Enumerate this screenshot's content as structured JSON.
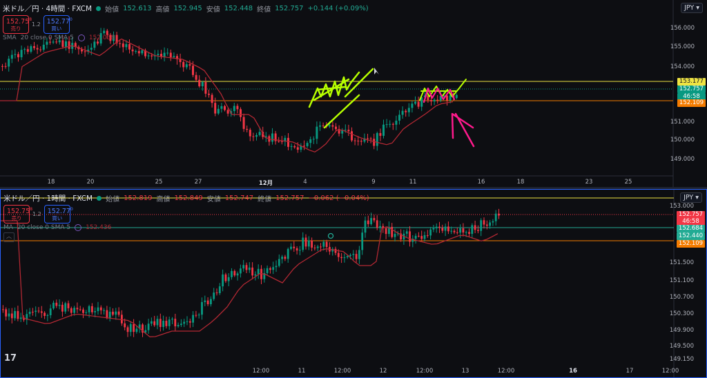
{
  "top": {
    "symbol": "米ドル／円 · 4時間 · FXCM",
    "ohlc": [
      {
        "label": "始値",
        "value": "152.613"
      },
      {
        "label": "高値",
        "value": "152.945"
      },
      {
        "label": "安値",
        "value": "152.448"
      },
      {
        "label": "終値",
        "value": "152.757"
      }
    ],
    "change": "+0.144 (+0.09%)",
    "sell": {
      "price": "152.75",
      "sup": "8",
      "label": "売り"
    },
    "spread": "1.2",
    "buy": {
      "price": "152.77",
      "sup": "0",
      "label": "買い"
    },
    "indicator": {
      "name": "SMA",
      "params": "20 close 0 SMA 5",
      "value": "152.038"
    },
    "currency": "JPY",
    "y_labels": [
      "156.000",
      "155.000",
      "154.000",
      "151.000",
      "150.000",
      "149.000"
    ],
    "x_labels": [
      {
        "t": "18",
        "bold": false
      },
      {
        "t": "20",
        "bold": false
      },
      {
        "t": "25",
        "bold": false
      },
      {
        "t": "27",
        "bold": false
      },
      {
        "t": "12月",
        "bold": true
      },
      {
        "t": "4",
        "bold": false
      },
      {
        "t": "9",
        "bold": false
      },
      {
        "t": "11",
        "bold": false
      },
      {
        "t": "16",
        "bold": false
      },
      {
        "t": "18",
        "bold": false
      },
      {
        "t": "23",
        "bold": false
      },
      {
        "t": "25",
        "bold": false
      }
    ],
    "price_tags": [
      {
        "text": "153.177",
        "bg": "#f0e442",
        "fg": "#131722"
      },
      {
        "text": "152.757",
        "bg": "#089981",
        "fg": "#ffffff"
      },
      {
        "text": "46:58",
        "bg": "#089981",
        "fg": "#ffffff"
      },
      {
        "text": "152.109",
        "bg": "#f57c00",
        "fg": "#ffffff"
      }
    ]
  },
  "bottom": {
    "symbol": "米ドル／円 · 1時間 · FXCM",
    "ohlc": [
      {
        "label": "始値",
        "value": "152.819"
      },
      {
        "label": "高値",
        "value": "152.849"
      },
      {
        "label": "安値",
        "value": "152.747"
      },
      {
        "label": "終値",
        "value": "152.757"
      }
    ],
    "change": "−0.062 (−0.04%)",
    "sell": {
      "price": "152.75",
      "sup": "8",
      "label": "売り"
    },
    "spread": "1.2",
    "buy": {
      "price": "152.77",
      "sup": "0",
      "label": "買い"
    },
    "indicator": {
      "name": "MA",
      "params": "20 close 0 SMA 5",
      "value": "152.436"
    },
    "currency": "JPY",
    "y_labels": [
      "153.000",
      "151.500",
      "151.100",
      "150.700",
      "150.300",
      "149.900",
      "149.500",
      "149.150"
    ],
    "x_labels": [
      {
        "t": "12:00",
        "bold": false
      },
      {
        "t": "11",
        "bold": false
      },
      {
        "t": "12:00",
        "bold": false
      },
      {
        "t": "12",
        "bold": false
      },
      {
        "t": "12:00",
        "bold": false
      },
      {
        "t": "13",
        "bold": false
      },
      {
        "t": "12:00",
        "bold": false
      },
      {
        "t": "16",
        "bold": true
      },
      {
        "t": "17",
        "bold": false
      },
      {
        "t": "12:00",
        "bold": false
      }
    ],
    "price_tags": [
      {
        "text": "152.757",
        "bg": "#f23645",
        "fg": "#ffffff"
      },
      {
        "text": "46:58",
        "bg": "#f23645",
        "fg": "#ffffff"
      },
      {
        "text": "152.684",
        "bg": "#22ab94",
        "fg": "#ffffff"
      },
      {
        "text": "152.440",
        "bg": "#22ab94",
        "fg": "#ffffff"
      },
      {
        "text": "152.109",
        "bg": "#f57c00",
        "fg": "#ffffff"
      }
    ]
  },
  "logo": "17",
  "colors": {
    "up": "#089981",
    "down": "#f23645",
    "ma": "#b22833",
    "yellow_line": "#f0e442",
    "orange_line": "#f57c00",
    "annot_green": "#b7ff00",
    "annot_pink": "#ff1a8c"
  }
}
